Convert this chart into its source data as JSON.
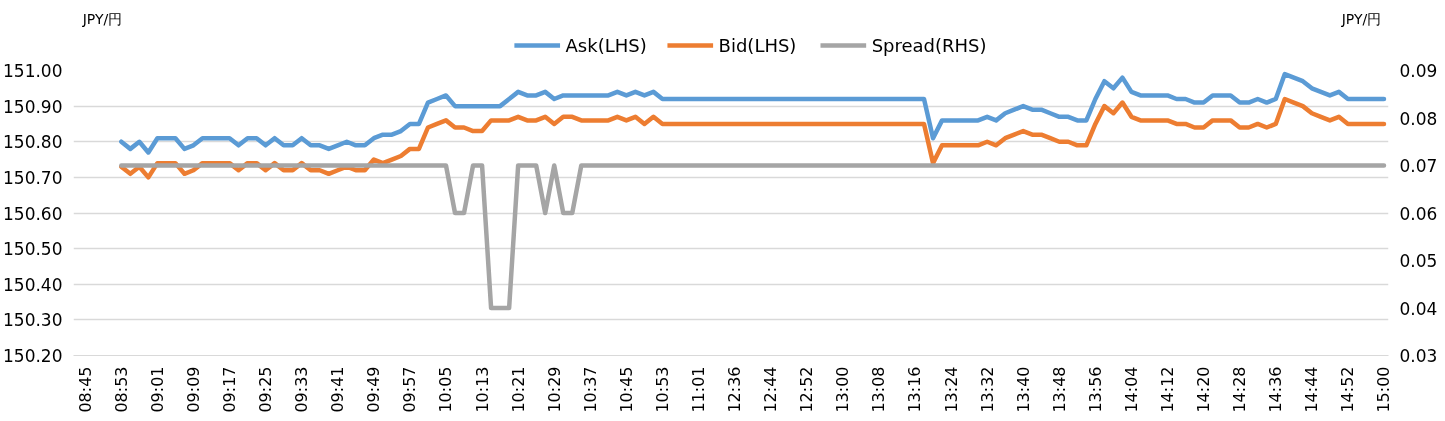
{
  "chart_data": {
    "type": "line",
    "ylabel": "JPY/円",
    "y2label": "JPY/円",
    "legend": "top",
    "grid": "y",
    "line_style": "solid",
    "marker": "none",
    "categories": [
      "08:45",
      null,
      null,
      null,
      "08:53",
      null,
      null,
      null,
      "09:01",
      null,
      null,
      null,
      "09:09",
      null,
      null,
      null,
      "09:17",
      null,
      null,
      null,
      "09:25",
      null,
      null,
      null,
      "09:33",
      null,
      null,
      null,
      "09:41",
      null,
      null,
      null,
      "09:49",
      null,
      null,
      null,
      "09:57",
      null,
      null,
      null,
      "10:05",
      null,
      null,
      null,
      "10:13",
      null,
      null,
      null,
      "10:21",
      null,
      null,
      null,
      "10:29",
      null,
      null,
      null,
      "10:37",
      null,
      null,
      null,
      "10:45",
      null,
      null,
      null,
      "10:53",
      null,
      null,
      null,
      "11:01",
      null,
      null,
      null,
      "12:36",
      null,
      null,
      null,
      "12:44",
      null,
      null,
      null,
      "12:52",
      null,
      null,
      null,
      "13:00",
      null,
      null,
      null,
      "13:08",
      null,
      null,
      null,
      "13:16",
      null,
      null,
      null,
      "13:24",
      null,
      null,
      null,
      "13:32",
      null,
      null,
      null,
      "13:40",
      null,
      null,
      null,
      "13:48",
      null,
      null,
      null,
      "13:56",
      null,
      null,
      null,
      "14:04",
      null,
      null,
      null,
      "14:12",
      null,
      null,
      null,
      "14:20",
      null,
      null,
      null,
      "14:28",
      null,
      null,
      null,
      "14:36",
      null,
      null,
      null,
      "14:44",
      null,
      null,
      null,
      "14:52",
      null,
      null,
      null,
      "15:00"
    ],
    "ylim": [
      150.2,
      151.0
    ],
    "yticks": [
      {
        "value": 150.2,
        "label": "150.20"
      },
      {
        "value": 150.3,
        "label": "150.30"
      },
      {
        "value": 150.4,
        "label": "150.40"
      },
      {
        "value": 150.5,
        "label": "150.50"
      },
      {
        "value": 150.6,
        "label": "150.60"
      },
      {
        "value": 150.7,
        "label": "150.70"
      },
      {
        "value": 150.8,
        "label": "150.80"
      },
      {
        "value": 150.9,
        "label": "150.90"
      },
      {
        "value": 151.0,
        "label": "151.00"
      }
    ],
    "y2lim": [
      0.03,
      0.09
    ],
    "y2ticks": [
      0.03,
      0.04,
      0.05,
      0.06,
      0.07,
      0.08,
      0.09
    ],
    "series": [
      {
        "name": "Ask(LHS)",
        "color": "#5b9bd5",
        "values": [
          null,
          null,
          null,
          null,
          150.8,
          150.78,
          150.8,
          150.77,
          150.81,
          150.81,
          150.81,
          150.78,
          150.79,
          150.81,
          150.81,
          150.81,
          150.81,
          150.79,
          150.81,
          150.81,
          150.79,
          150.81,
          150.79,
          150.79,
          150.81,
          150.79,
          150.79,
          150.78,
          150.79,
          150.8,
          150.79,
          150.79,
          150.81,
          150.82,
          150.82,
          150.83,
          150.85,
          150.85,
          150.91,
          150.92,
          150.93,
          150.9,
          150.9,
          150.9,
          150.9,
          150.9,
          150.9,
          150.92,
          150.94,
          150.93,
          150.93,
          150.94,
          150.92,
          150.93,
          150.93,
          150.93,
          150.93,
          150.93,
          150.93,
          150.94,
          150.93,
          150.94,
          150.93,
          150.94,
          150.92,
          150.92,
          150.92,
          150.92,
          150.92,
          150.92,
          150.92,
          150.92,
          150.92,
          150.92,
          150.92,
          150.92,
          150.92,
          150.92,
          150.92,
          150.92,
          150.92,
          150.92,
          150.92,
          150.92,
          150.92,
          150.92,
          150.92,
          150.92,
          150.92,
          150.92,
          150.92,
          150.92,
          150.92,
          150.92,
          150.81,
          150.86,
          150.86,
          150.86,
          150.86,
          150.86,
          150.87,
          150.86,
          150.88,
          150.89,
          150.9,
          150.89,
          150.89,
          150.88,
          150.87,
          150.87,
          150.86,
          150.86,
          150.92,
          150.97,
          150.95,
          150.98,
          150.94,
          150.93,
          150.93,
          150.93,
          150.93,
          150.92,
          150.92,
          150.91,
          150.91,
          150.93,
          150.93,
          150.93,
          150.91,
          150.91,
          150.92,
          150.91,
          150.92,
          150.99,
          150.98,
          150.97,
          150.95,
          150.94,
          150.93,
          150.94,
          150.92,
          150.92,
          150.92,
          150.92,
          150.92
        ]
      },
      {
        "name": "Bid(LHS)",
        "color": "#ed7d31",
        "values": [
          null,
          null,
          null,
          null,
          150.73,
          150.71,
          150.73,
          150.7,
          150.74,
          150.74,
          150.74,
          150.71,
          150.72,
          150.74,
          150.74,
          150.74,
          150.74,
          150.72,
          150.74,
          150.74,
          150.72,
          150.74,
          150.72,
          150.72,
          150.74,
          150.72,
          150.72,
          150.71,
          150.72,
          150.73,
          150.72,
          150.72,
          150.75,
          150.74,
          150.75,
          150.76,
          150.78,
          150.78,
          150.84,
          150.85,
          150.86,
          150.84,
          150.84,
          150.83,
          150.83,
          150.86,
          150.86,
          150.86,
          150.87,
          150.86,
          150.86,
          150.87,
          150.85,
          150.87,
          150.87,
          150.86,
          150.86,
          150.86,
          150.86,
          150.87,
          150.86,
          150.87,
          150.85,
          150.87,
          150.85,
          150.85,
          150.85,
          150.85,
          150.85,
          150.85,
          150.85,
          150.85,
          150.85,
          150.85,
          150.85,
          150.85,
          150.85,
          150.85,
          150.85,
          150.85,
          150.85,
          150.85,
          150.85,
          150.85,
          150.85,
          150.85,
          150.85,
          150.85,
          150.85,
          150.85,
          150.85,
          150.85,
          150.85,
          150.85,
          150.74,
          150.79,
          150.79,
          150.79,
          150.79,
          150.79,
          150.8,
          150.79,
          150.81,
          150.82,
          150.83,
          150.82,
          150.82,
          150.81,
          150.8,
          150.8,
          150.79,
          150.79,
          150.85,
          150.9,
          150.88,
          150.91,
          150.87,
          150.86,
          150.86,
          150.86,
          150.86,
          150.85,
          150.85,
          150.84,
          150.84,
          150.86,
          150.86,
          150.86,
          150.84,
          150.84,
          150.85,
          150.84,
          150.85,
          150.92,
          150.91,
          150.9,
          150.88,
          150.87,
          150.86,
          150.87,
          150.85,
          150.85,
          150.85,
          150.85,
          150.85
        ]
      },
      {
        "name": "Spread(RHS)",
        "color": "#a5a5a5",
        "axis": "y2",
        "values": [
          null,
          null,
          null,
          null,
          0.07,
          0.07,
          0.07,
          0.07,
          0.07,
          0.07,
          0.07,
          0.07,
          0.07,
          0.07,
          0.07,
          0.07,
          0.07,
          0.07,
          0.07,
          0.07,
          0.07,
          0.07,
          0.07,
          0.07,
          0.07,
          0.07,
          0.07,
          0.07,
          0.07,
          0.07,
          0.07,
          0.07,
          0.07,
          0.07,
          0.07,
          0.07,
          0.07,
          0.07,
          0.07,
          0.07,
          0.07,
          0.06,
          0.06,
          0.07,
          0.07,
          0.04,
          0.04,
          0.04,
          0.07,
          0.07,
          0.07,
          0.06,
          0.07,
          0.06,
          0.06,
          0.07,
          0.07,
          0.07,
          0.07,
          0.07,
          0.07,
          0.07,
          0.07,
          0.07,
          0.07,
          0.07,
          0.07,
          0.07,
          0.07,
          0.07,
          0.07,
          0.07,
          0.07,
          0.07,
          0.07,
          0.07,
          0.07,
          0.07,
          0.07,
          0.07,
          0.07,
          0.07,
          0.07,
          0.07,
          0.07,
          0.07,
          0.07,
          0.07,
          0.07,
          0.07,
          0.07,
          0.07,
          0.07,
          0.07,
          0.07,
          0.07,
          0.07,
          0.07,
          0.07,
          0.07,
          0.07,
          0.07,
          0.07,
          0.07,
          0.07,
          0.07,
          0.07,
          0.07,
          0.07,
          0.07,
          0.07,
          0.07,
          0.07,
          0.07,
          0.07,
          0.07,
          0.07,
          0.07,
          0.07,
          0.07,
          0.07,
          0.07,
          0.07,
          0.07,
          0.07,
          0.07,
          0.07,
          0.07,
          0.07,
          0.07,
          0.07,
          0.07,
          0.07,
          0.07,
          0.07,
          0.07,
          0.07,
          0.07,
          0.07,
          0.07,
          0.07,
          0.07,
          0.07,
          0.07,
          0.07
        ]
      }
    ]
  }
}
